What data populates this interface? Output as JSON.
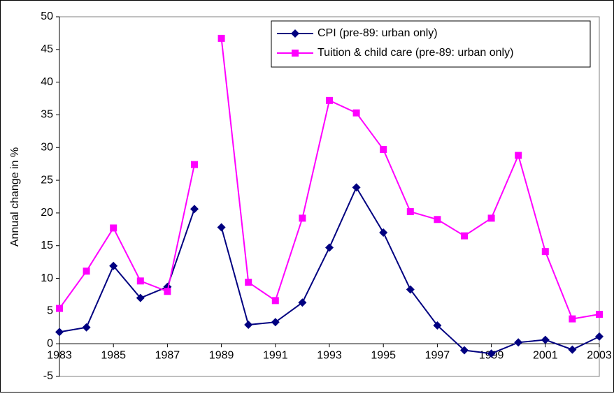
{
  "chart_data": {
    "type": "line",
    "y_label": "Annual change in %",
    "x": [
      1983,
      1984,
      1985,
      1986,
      1987,
      1988,
      null,
      1989,
      1990,
      1991,
      1992,
      1993,
      1994,
      1995,
      1996,
      1997,
      1998,
      1999,
      2000,
      2001,
      2002,
      2003
    ],
    "series": [
      {
        "name": "CPI (pre-89: urban only)",
        "color": "#000080",
        "marker": "diamond",
        "values": [
          1.8,
          2.5,
          11.9,
          7.0,
          8.7,
          20.6,
          null,
          17.8,
          2.9,
          3.3,
          6.3,
          14.7,
          23.9,
          17.0,
          8.3,
          2.8,
          -1.0,
          -1.5,
          0.2,
          0.6,
          -0.9,
          1.1
        ]
      },
      {
        "name": "Tuition & child care (pre-89: urban only)",
        "color": "#ff00ff",
        "marker": "square",
        "values": [
          5.4,
          11.1,
          17.7,
          9.6,
          8.0,
          27.4,
          null,
          46.7,
          9.4,
          6.6,
          19.2,
          37.2,
          35.3,
          29.7,
          20.2,
          19.0,
          16.5,
          19.2,
          28.8,
          14.1,
          3.8,
          4.5
        ]
      }
    ],
    "xlim": [
      1983,
      2003
    ],
    "xticks": [
      1983,
      1985,
      1987,
      1989,
      1991,
      1993,
      1995,
      1997,
      1999,
      2001,
      2003
    ],
    "ylim": [
      -5,
      50
    ],
    "yticks": [
      -5,
      0,
      5,
      10,
      15,
      20,
      25,
      30,
      35,
      40,
      45,
      50
    ],
    "legend": "top-right"
  }
}
